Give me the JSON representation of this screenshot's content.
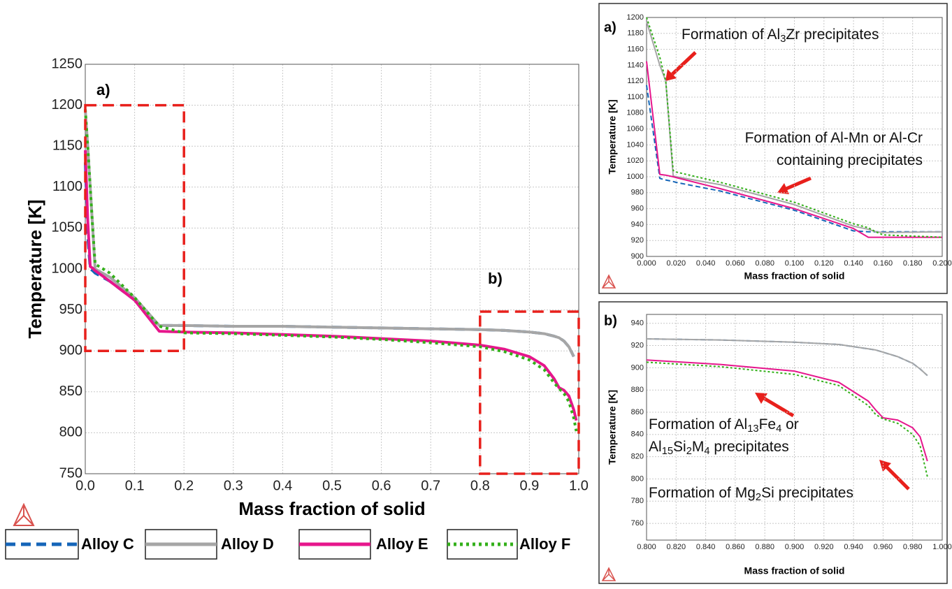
{
  "chart_data": [
    {
      "type": "line",
      "panel_label": "a)",
      "panel_label_b": "b)",
      "xlabel": "Mass fraction of solid",
      "ylabel": "Temperature [K]",
      "xlim": [
        0,
        1
      ],
      "ylim": [
        750,
        1250
      ],
      "xticks": [
        {
          "value": 0,
          "label": "0.0"
        },
        0.1,
        0.2,
        0.3,
        0.4,
        0.5,
        0.6,
        0.7,
        0.8,
        0.9,
        {
          "value": 1,
          "label": "1.0"
        }
      ],
      "yticks": [
        750,
        800,
        850,
        900,
        950,
        1000,
        1050,
        1100,
        1150,
        1200,
        1250
      ],
      "grid": true,
      "x": [
        0,
        0.005,
        0.01,
        0.015,
        0.02,
        0.05,
        0.1,
        0.15,
        0.2,
        0.3,
        0.4,
        0.5,
        0.6,
        0.7,
        0.8,
        0.85,
        0.9,
        0.93,
        0.95,
        0.96,
        0.97,
        0.98,
        0.99,
        0.995
      ],
      "series": [
        {
          "name": "Alloy C",
          "color": "#1565b8",
          "dash": "dashed",
          "values": [
            1130,
            1040,
            1000,
            998,
            995,
            985,
            962,
            931,
            931,
            930,
            930,
            929,
            928,
            927,
            926,
            925,
            923,
            921,
            918,
            916,
            912,
            905,
            893,
            null
          ]
        },
        {
          "name": "Alloy D",
          "color": "#a6a6a6",
          "dash": "solid",
          "values": [
            1195,
            1150,
            1100,
            1050,
            1000,
            990,
            965,
            931,
            931,
            930,
            930,
            929,
            928,
            927,
            926,
            925,
            923,
            921,
            918,
            916,
            912,
            905,
            893,
            null
          ]
        },
        {
          "name": "Alloy E",
          "color": "#e6168c",
          "dash": "solid",
          "values": [
            1145,
            1060,
            1003,
            1001,
            998,
            985,
            962,
            924,
            923,
            922,
            920,
            918,
            915,
            912,
            907,
            902,
            893,
            882,
            866,
            855,
            852,
            845,
            828,
            815
          ]
        },
        {
          "name": "Alloy F",
          "color": "#33b01a",
          "dash": "dotted",
          "values": [
            1195,
            1150,
            1100,
            1050,
            1006,
            995,
            965,
            930,
            922,
            921,
            919,
            917,
            914,
            910,
            905,
            899,
            889,
            877,
            861,
            854,
            848,
            838,
            818,
            802
          ]
        }
      ]
    },
    {
      "type": "line",
      "panel_label": "a)",
      "xlabel": "Mass fraction of solid",
      "ylabel": "Temperature [K]",
      "xlim": [
        0,
        0.2
      ],
      "ylim": [
        900,
        1200
      ],
      "xticks": [
        {
          "value": 0,
          "label": "0.000"
        },
        {
          "value": 0.02,
          "label": "0.020"
        },
        {
          "value": 0.04,
          "label": "0.040"
        },
        {
          "value": 0.06,
          "label": "0.060"
        },
        {
          "value": 0.08,
          "label": "0.080"
        },
        {
          "value": 0.1,
          "label": "0.100"
        },
        {
          "value": 0.12,
          "label": "0.120"
        },
        {
          "value": 0.14,
          "label": "0.140"
        },
        {
          "value": 0.16,
          "label": "0.160"
        },
        {
          "value": 0.18,
          "label": "0.180"
        },
        {
          "value": 0.2,
          "label": "0.200"
        }
      ],
      "yticks": [
        900,
        920,
        940,
        960,
        980,
        1000,
        1020,
        1040,
        1060,
        1080,
        1100,
        1120,
        1140,
        1160,
        1180,
        1200
      ],
      "grid": true,
      "annotations": [
        {
          "text": [
            "Formation of Al",
            "3",
            "Zr precipitates"
          ]
        },
        {
          "text": [
            "Formation of Al-Mn or Al-Cr"
          ]
        },
        {
          "text": [
            "containing precipitates"
          ]
        }
      ],
      "x": [
        0,
        0.009,
        0.013,
        0.018,
        0.02,
        0.05,
        0.1,
        0.14,
        0.15,
        0.155,
        0.16,
        0.2
      ],
      "series": [
        {
          "color": "#1565b8",
          "dash": "dashed",
          "values": [
            1115,
            998,
            996,
            994,
            993,
            982,
            958,
            932,
            931,
            931,
            931,
            931
          ]
        },
        {
          "color": "#a6a6a6",
          "dash": "solid",
          "values": [
            1195,
            1140,
            1120,
            1001,
            1000,
            990,
            965,
            938,
            934,
            931,
            930,
            931
          ]
        },
        {
          "color": "#e6168c",
          "dash": "solid",
          "values": [
            1145,
            1003,
            1002,
            1000,
            999,
            985,
            960,
            935,
            924,
            924,
            924,
            924
          ]
        },
        {
          "color": "#33b01a",
          "dash": "dotted",
          "values": [
            1200,
            1150,
            1120,
            1008,
            1006,
            993,
            968,
            941,
            936,
            931,
            927,
            924
          ]
        }
      ]
    },
    {
      "type": "line",
      "panel_label": "b)",
      "xlabel": "Mass fraction of solid",
      "ylabel": "Temperature [K]",
      "xlim": [
        0.8,
        1.0
      ],
      "ylim": [
        745,
        948
      ],
      "xticks": [
        {
          "value": 0.8,
          "label": "0.800"
        },
        {
          "value": 0.82,
          "label": "0.820"
        },
        {
          "value": 0.84,
          "label": "0.840"
        },
        {
          "value": 0.86,
          "label": "0.860"
        },
        {
          "value": 0.88,
          "label": "0.880"
        },
        {
          "value": 0.9,
          "label": "0.900"
        },
        {
          "value": 0.92,
          "label": "0.920"
        },
        {
          "value": 0.94,
          "label": "0.940"
        },
        {
          "value": 0.96,
          "label": "0.960"
        },
        {
          "value": 0.98,
          "label": "0.980"
        },
        {
          "value": 1.0,
          "label": "1.000"
        }
      ],
      "yticks": [
        760,
        780,
        800,
        820,
        840,
        860,
        880,
        900,
        920,
        940
      ],
      "grid": true,
      "annotations": [
        {
          "text": [
            "Formation of Al",
            "13",
            "Fe",
            "4",
            " or"
          ]
        },
        {
          "text": [
            "Al",
            "15",
            "Si",
            "2",
            "M",
            "4",
            " precipitates"
          ]
        },
        {
          "text": [
            "Formation of Mg",
            "2",
            "Si precipitates"
          ]
        }
      ],
      "x": [
        0.8,
        0.85,
        0.9,
        0.93,
        0.95,
        0.955,
        0.96,
        0.97,
        0.98,
        0.985,
        0.99
      ],
      "series": [
        {
          "color": "#1565b8",
          "dash": "dashed",
          "values": [
            926,
            925,
            923,
            921,
            917,
            916,
            914,
            910,
            904,
            899,
            893
          ]
        },
        {
          "color": "#a6a6a6",
          "dash": "solid",
          "values": [
            926,
            925,
            923,
            921,
            917,
            916,
            914,
            910,
            904,
            899,
            893
          ]
        },
        {
          "color": "#e6168c",
          "dash": "solid",
          "values": [
            907,
            903,
            897,
            887,
            870,
            862,
            855,
            853,
            846,
            838,
            816
          ]
        },
        {
          "color": "#33b01a",
          "dash": "dotted",
          "values": [
            905,
            901,
            894,
            884,
            866,
            858,
            854,
            850,
            840,
            830,
            802
          ]
        }
      ]
    }
  ]
}
